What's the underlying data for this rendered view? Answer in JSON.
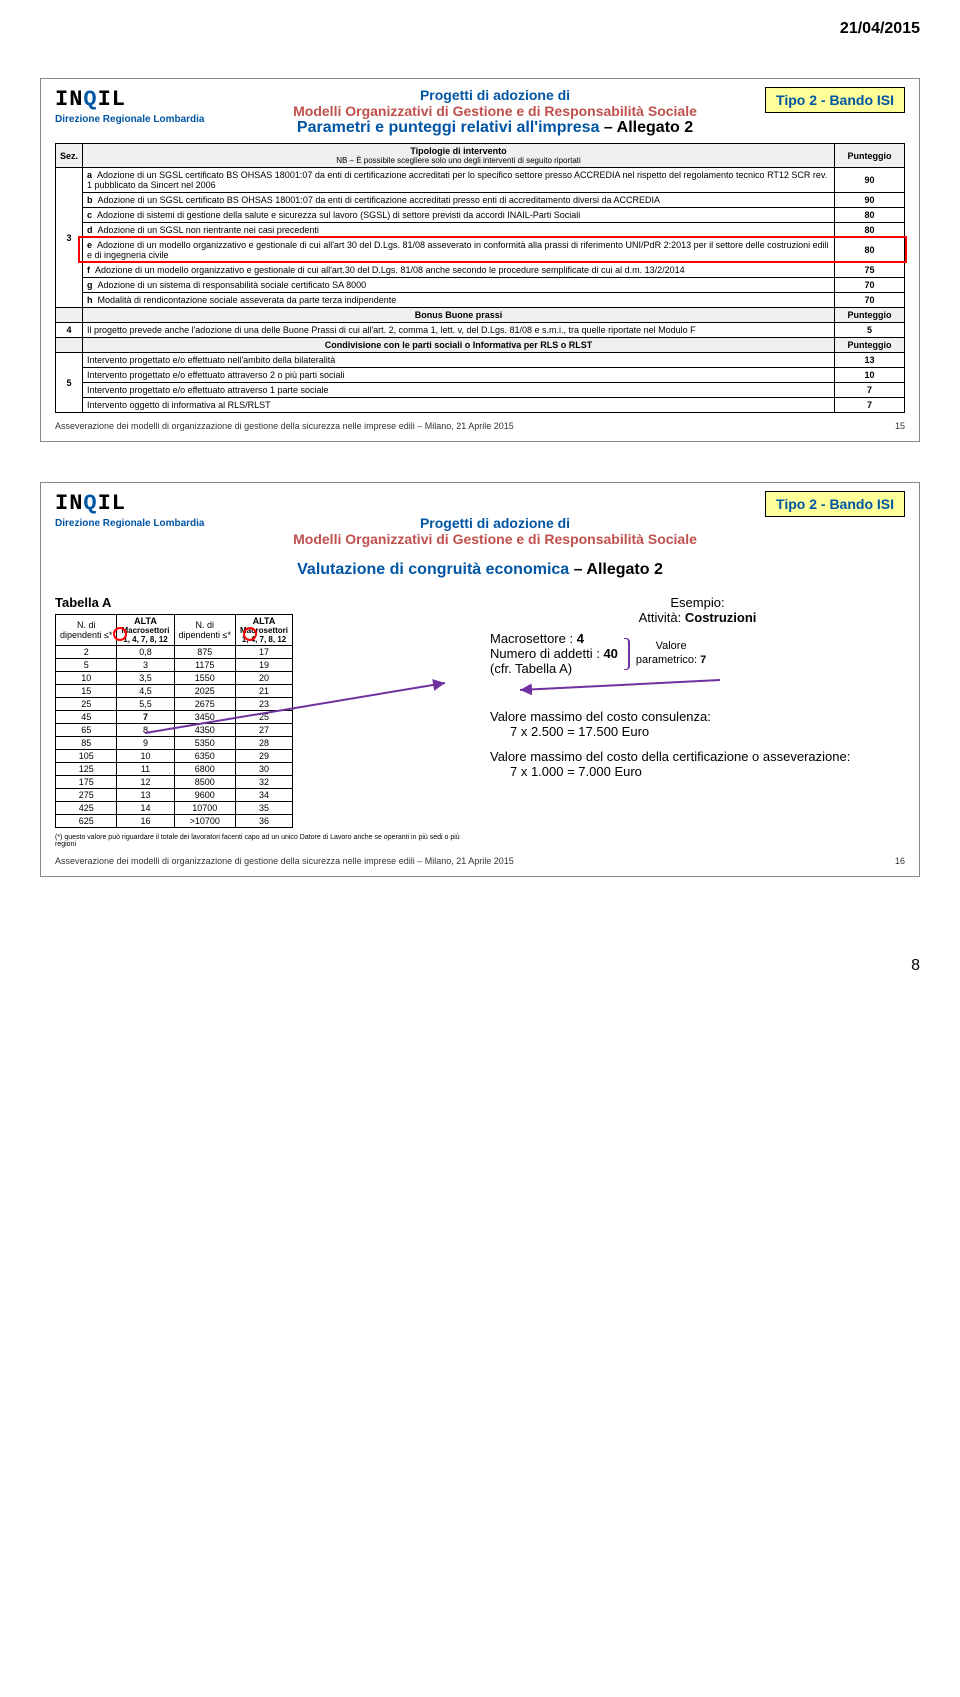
{
  "date": "21/04/2015",
  "logo_text": "INQIL",
  "direzione": "Direzione Regionale Lombardia",
  "tipo_badge": "Tipo 2 - Bando ISI",
  "slide1": {
    "line1": "Progetti di adozione di",
    "line2": "Modelli Organizzativi di Gestione e di Responsabilità Sociale",
    "line3": "Parametri e punteggi relativi all'impresa",
    "allegato": " – Allegato 2",
    "th_sez": "Sez.",
    "th_tip": "Tipologie di intervento",
    "th_nb": "NB – È possibile scegliere solo uno degli interventi di seguito riportati",
    "th_pun": "Punteggio",
    "rows3": [
      {
        "k": "a",
        "t": "Adozione di un SGSL certificato BS OHSAS 18001:07 da enti di certificazione accreditati per lo specifico settore presso ACCREDIA nel rispetto del regolamento tecnico RT12 SCR rev. 1 pubblicato da Sincert nel 2006",
        "p": "90"
      },
      {
        "k": "b",
        "t": "Adozione di un SGSL certificato BS OHSAS 18001:07 da enti di certificazione accreditati presso enti di accreditamento diversi da ACCREDIA",
        "p": "90"
      },
      {
        "k": "c",
        "t": "Adozione di sistemi di gestione della salute e sicurezza sul lavoro (SGSL) di settore previsti da accordi INAIL-Parti Sociali",
        "p": "80"
      },
      {
        "k": "d",
        "t": "Adozione di un SGSL non rientrante nei casi precedenti",
        "p": "80"
      },
      {
        "k": "e",
        "t": "Adozione di un modello organizzativo e gestionale di cui all'art 30 del D.Lgs. 81/08 asseverato in conformità alla prassi di riferimento UNI/PdR 2:2013 per il settore delle costruzioni edili e di ingegneria civile",
        "p": "80"
      },
      {
        "k": "f",
        "t": "Adozione di un modello organizzativo e gestionale di cui all'art.30 del D.Lgs. 81/08 anche secondo le procedure semplificate di cui al d.m. 13/2/2014",
        "p": "75"
      },
      {
        "k": "g",
        "t": "Adozione di un sistema di responsabilità sociale certificato SA 8000",
        "p": "70"
      },
      {
        "k": "h",
        "t": "Modalità di rendicontazione sociale asseverata da parte terza indipendente",
        "p": "70"
      }
    ],
    "bonus_label": "Bonus Buone prassi",
    "row4": {
      "k": "4",
      "t": "Il progetto prevede anche l'adozione di una delle Buone Prassi di cui all'art. 2, comma 1, lett. v, del D.Lgs. 81/08 e s.m.i., tra quelle riportate nel Modulo F",
      "p": "5"
    },
    "condivisione_label": "Condivisione con le parti sociali o  Informativa per  RLS o RLST",
    "rows5": [
      {
        "t": "Intervento progettato e/o effettuato nell'ambito della bilateralità",
        "p": "13"
      },
      {
        "t": "Intervento progettato e/o effettuato attraverso 2 o più parti sociali",
        "p": "10"
      },
      {
        "t": "Intervento progettato e/o effettuato attraverso 1 parte sociale",
        "p": "7"
      },
      {
        "t": "Intervento oggetto di informativa al RLS/RLST",
        "p": "7"
      }
    ],
    "sec3": "3",
    "sec5": "5",
    "footer": "Asseverazione dei modelli di organizzazione di gestione della sicurezza nelle imprese edili – Milano, 21 Aprile 2015",
    "slidenum": "15"
  },
  "slide2": {
    "line1": "Progetti di adozione di",
    "line2": "Modelli Organizzativi di Gestione e di Responsabilità Sociale",
    "title": "Valutazione di congruità economica",
    "allegato": " – Allegato 2",
    "tabella_label": "Tabella A",
    "hdr_ndip": "N. di\ndipendenti ≤*",
    "hdr_alta": "ALTA",
    "hdr_macro1": "Macrosettori\n1, 4, 7, 8, 12",
    "hdr_macro2": "Macrosettori\n1, 4, 7, 8, 12",
    "rowsA": [
      [
        "2",
        "0,8",
        "875",
        "17"
      ],
      [
        "5",
        "3",
        "1175",
        "19"
      ],
      [
        "10",
        "3,5",
        "1550",
        "20"
      ],
      [
        "15",
        "4,5",
        "2025",
        "21"
      ],
      [
        "25",
        "5,5",
        "2675",
        "23"
      ],
      [
        "45",
        "7",
        "3450",
        "25"
      ],
      [
        "65",
        "8",
        "4350",
        "27"
      ],
      [
        "85",
        "9",
        "5350",
        "28"
      ],
      [
        "105",
        "10",
        "6350",
        "29"
      ],
      [
        "125",
        "11",
        "6800",
        "30"
      ],
      [
        "175",
        "12",
        "8500",
        "32"
      ],
      [
        "275",
        "13",
        "9600",
        "34"
      ],
      [
        "425",
        "14",
        "10700",
        "35"
      ],
      [
        "625",
        "16",
        ">10700",
        "36"
      ]
    ],
    "note": "(*) questo valore  può riguardare il  totale dei lavoratori facenti capo ad un unico Datore di Lavoro anche se operanti in più sedi o più regioni",
    "esempio": "Esempio:",
    "attivita_lbl": "Attività: ",
    "attivita_val": "Costruzioni",
    "macro_lbl": "Macrosettore : ",
    "macro_val": "4",
    "addetti_lbl": "Numero di addetti : ",
    "addetti_val": "40",
    "cfr": "(cfr. Tabella A)",
    "valore_lbl": "Valore",
    "param_lbl": "parametrico: ",
    "param_val": "7",
    "cons_line": "Valore massimo del costo consulenza:",
    "cons_calc": "7 x 2.500 = 17.500 Euro",
    "cert_line": "Valore massimo del costo della certificazione o asseverazione:",
    "cert_calc": "7 x 1.000 = 7.000 Euro",
    "footer": "Asseverazione dei modelli di organizzazione di gestione della sicurezza nelle imprese edili – Milano, 21 Aprile 2015",
    "slidenum": "16"
  },
  "pagenum": "8"
}
